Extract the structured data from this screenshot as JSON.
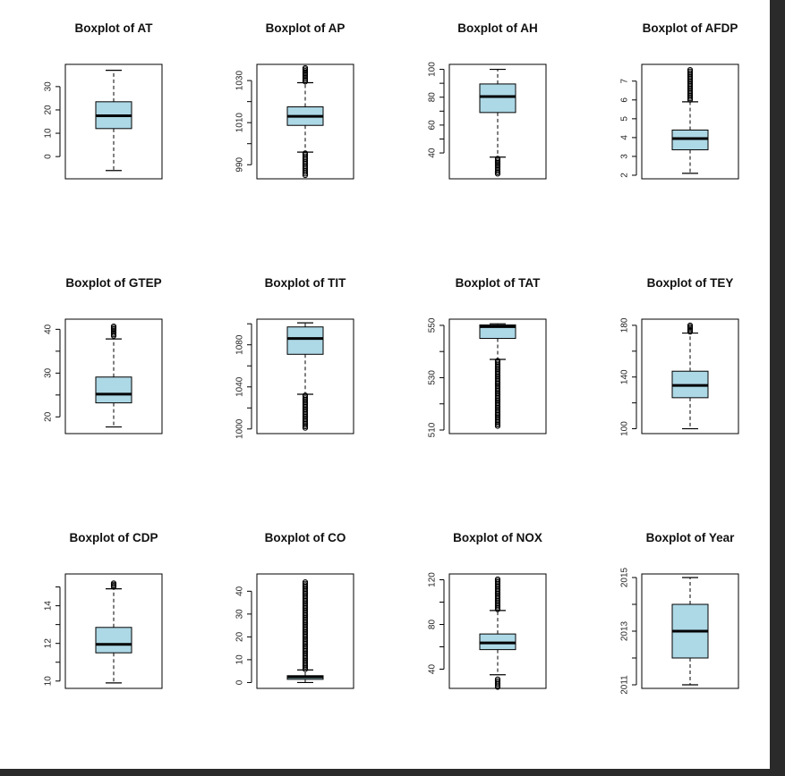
{
  "colors": {
    "box_fill": "#add8e6",
    "ink": "#000000",
    "background": "#ffffff",
    "frame": "#2a2a2a"
  },
  "chart_data": [
    {
      "type": "boxplot",
      "title": "Boxplot of AT",
      "ylim": [
        -8,
        38
      ],
      "ticks": [
        0,
        10,
        20,
        30
      ],
      "tick_labels": [
        "0",
        "10",
        "20",
        "30"
      ],
      "stats": {
        "min": -6,
        "q1": 12,
        "median": 17.5,
        "q3": 23.5,
        "max": 37
      },
      "outliers_low": [],
      "outliers_high": [],
      "grid": false
    },
    {
      "type": "boxplot",
      "title": "Boxplot of AP",
      "ylim": [
        985,
        1036
      ],
      "ticks": [
        990,
        1000,
        1010,
        1020,
        1030
      ],
      "tick_labels": [
        "990",
        "",
        "1010",
        "",
        "1030"
      ],
      "stats": {
        "min": 996,
        "q1": 1008.7,
        "median": 1013,
        "q3": 1017.5,
        "max": 1029
      },
      "outliers_low": [
        985,
        995.5
      ],
      "outliers_high": [
        1029.5,
        1036
      ],
      "grid": false
    },
    {
      "type": "boxplot",
      "title": "Boxplot of AH",
      "ylim": [
        24,
        101
      ],
      "ticks": [
        40,
        50,
        60,
        70,
        80,
        90,
        100
      ],
      "tick_labels": [
        "40",
        "",
        "60",
        "",
        "80",
        "",
        "100"
      ],
      "stats": {
        "min": 37,
        "q1": 69,
        "median": 80.5,
        "q3": 89.5,
        "max": 100
      },
      "outliers_low": [
        25,
        36
      ],
      "outliers_high": [],
      "grid": false
    },
    {
      "type": "boxplot",
      "title": "Boxplot of AFDP",
      "ylim": [
        2.0,
        7.7
      ],
      "ticks": [
        2,
        3,
        4,
        5,
        6,
        7
      ],
      "tick_labels": [
        "2",
        "3",
        "4",
        "5",
        "6",
        "7"
      ],
      "stats": {
        "min": 2.1,
        "q1": 3.35,
        "median": 3.95,
        "q3": 4.4,
        "max": 5.9
      },
      "outliers_low": [],
      "outliers_high": [
        6.0,
        7.6
      ],
      "grid": false
    },
    {
      "type": "boxplot",
      "title": "Boxplot of GTEP",
      "ylim": [
        17,
        41.5
      ],
      "ticks": [
        20,
        25,
        30,
        35,
        40
      ],
      "tick_labels": [
        "20",
        "",
        "30",
        "",
        "40"
      ],
      "stats": {
        "min": 17.7,
        "q1": 23.2,
        "median": 25.2,
        "q3": 29.1,
        "max": 37.8
      },
      "outliers_low": [],
      "outliers_high": [
        38.5,
        40.7
      ],
      "grid": false
    },
    {
      "type": "boxplot",
      "title": "Boxplot of TIT",
      "ylim": [
        999,
        1101
      ],
      "ticks": [
        1000,
        1020,
        1040,
        1060,
        1080,
        1100
      ],
      "tick_labels": [
        "1000",
        "",
        "1040",
        "",
        "1080",
        ""
      ],
      "stats": {
        "min": 1033,
        "q1": 1071,
        "median": 1086,
        "q3": 1097,
        "max": 1100.9
      },
      "outliers_low": [
        1001,
        1032
      ],
      "outliers_high": [],
      "grid": false
    },
    {
      "type": "boxplot",
      "title": "Boxplot of TAT",
      "ylim": [
        510,
        551
      ],
      "ticks": [
        510,
        520,
        530,
        540,
        550
      ],
      "tick_labels": [
        "510",
        "",
        "530",
        "",
        "550"
      ],
      "stats": {
        "min": 537,
        "q1": 545,
        "median": 549.5,
        "q3": 550.2,
        "max": 550.6
      },
      "outliers_low": [
        511.5,
        536.5
      ],
      "outliers_high": [],
      "grid": false
    },
    {
      "type": "boxplot",
      "title": "Boxplot of TEY",
      "ylim": [
        99,
        182
      ],
      "ticks": [
        100,
        120,
        140,
        160,
        180
      ],
      "tick_labels": [
        "100",
        "",
        "140",
        "",
        "180"
      ],
      "stats": {
        "min": 100,
        "q1": 124,
        "median": 133.5,
        "q3": 144.5,
        "max": 174
      },
      "outliers_low": [],
      "outliers_high": [
        175,
        180
      ],
      "grid": false
    },
    {
      "type": "boxplot",
      "title": "Boxplot of CDP",
      "ylim": [
        9.8,
        15.5
      ],
      "ticks": [
        10,
        11,
        12,
        13,
        14,
        15
      ],
      "tick_labels": [
        "10",
        "",
        "12",
        "",
        "14",
        ""
      ],
      "stats": {
        "min": 9.9,
        "q1": 11.5,
        "median": 11.95,
        "q3": 12.85,
        "max": 14.9
      },
      "outliers_low": [],
      "outliers_high": [
        15.0,
        15.2
      ],
      "grid": false
    },
    {
      "type": "boxplot",
      "title": "Boxplot of CO",
      "ylim": [
        -1,
        46
      ],
      "ticks": [
        0,
        10,
        20,
        30,
        40
      ],
      "tick_labels": [
        "0",
        "10",
        "20",
        "30",
        "40"
      ],
      "stats": {
        "min": 0,
        "q1": 1.4,
        "median": 2.5,
        "q3": 3.0,
        "max": 5.5
      },
      "outliers_low": [],
      "outliers_high": [
        5.8,
        44.0
      ],
      "grid": false
    },
    {
      "type": "boxplot",
      "title": "Boxplot of NOX",
      "ylim": [
        26,
        122
      ],
      "ticks": [
        40,
        60,
        80,
        100,
        120
      ],
      "tick_labels": [
        "40",
        "",
        "80",
        "",
        "120"
      ],
      "stats": {
        "min": 35,
        "q1": 57.5,
        "median": 63.5,
        "q3": 71.5,
        "max": 92.5
      },
      "outliers_low": [
        24,
        31
      ],
      "outliers_high": [
        93.5,
        120.5
      ],
      "grid": false
    },
    {
      "type": "boxplot",
      "title": "Boxplot of Year",
      "ylim": [
        2011,
        2015
      ],
      "ticks": [
        2011,
        2012,
        2013,
        2014,
        2015
      ],
      "tick_labels": [
        "2011",
        "",
        "2013",
        "",
        "2015"
      ],
      "stats": {
        "min": 2011,
        "q1": 2012,
        "median": 2013,
        "q3": 2014,
        "max": 2015
      },
      "outliers_low": [],
      "outliers_high": [],
      "grid": false
    }
  ]
}
